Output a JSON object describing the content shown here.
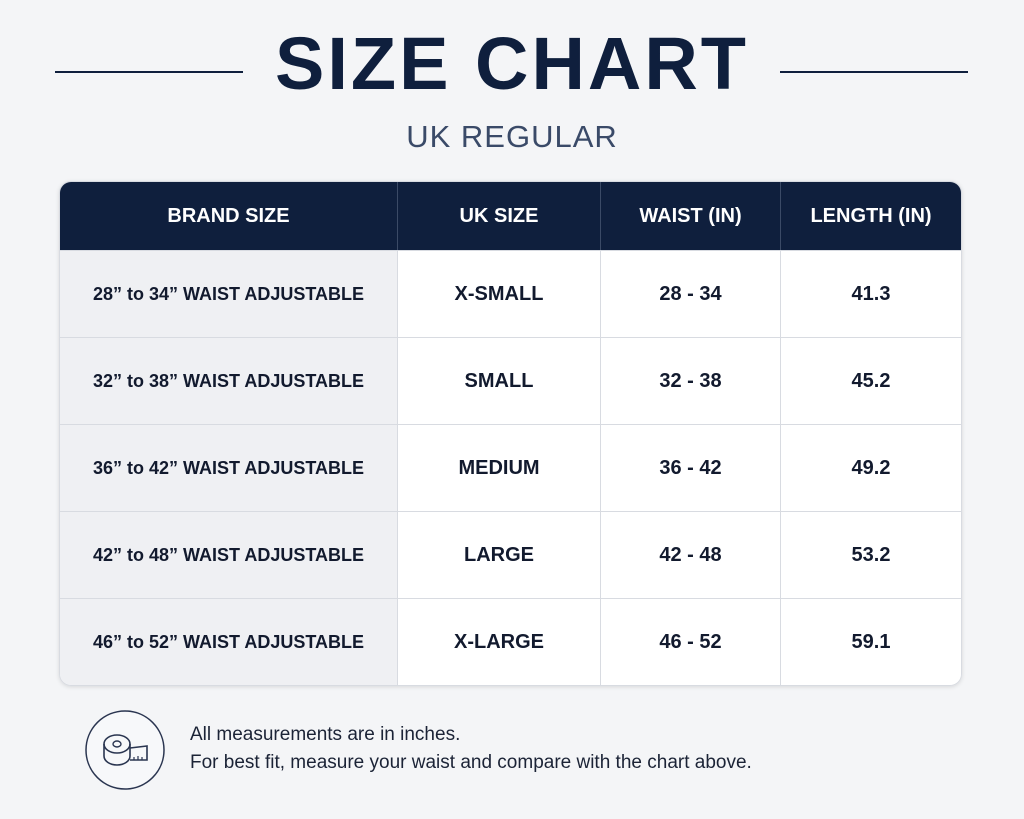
{
  "header": {
    "title": "SIZE CHART",
    "subtitle": "UK REGULAR"
  },
  "table": {
    "columns": [
      "BRAND SIZE",
      "UK SIZE",
      "WAIST (IN)",
      "LENGTH (IN)"
    ],
    "rows": [
      [
        "28” to 34” WAIST ADJUSTABLE",
        "X-SMALL",
        "28 - 34",
        "41.3"
      ],
      [
        "32” to 38” WAIST ADJUSTABLE",
        "SMALL",
        "32 - 38",
        "45.2"
      ],
      [
        "36” to 42” WAIST ADJUSTABLE",
        "MEDIUM",
        "36 - 42",
        "49.2"
      ],
      [
        "42” to 48” WAIST ADJUSTABLE",
        "LARGE",
        "42 - 48",
        "53.2"
      ],
      [
        "46” to 52” WAIST ADJUSTABLE",
        "X-LARGE",
        "46 - 52",
        "59.1"
      ]
    ]
  },
  "footer": {
    "notes": [
      "All measurements are in inches.",
      "For best fit, measure your waist and compare with the chart above."
    ]
  }
}
